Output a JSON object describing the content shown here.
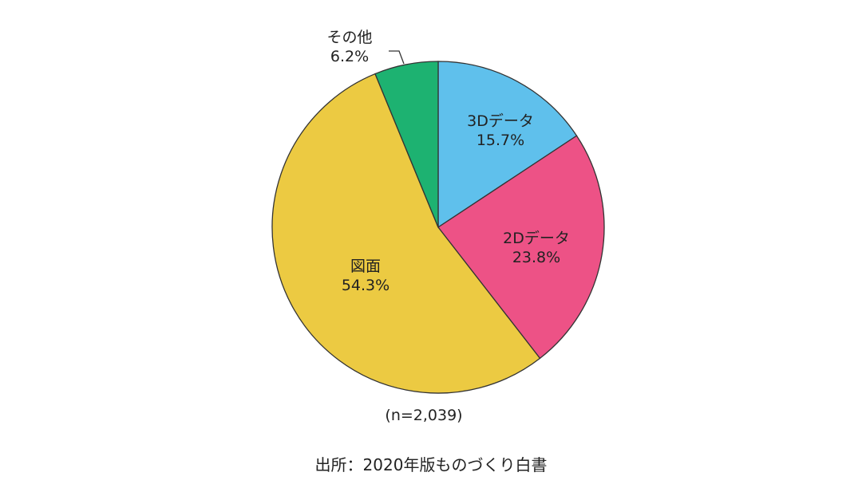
{
  "chart_data": {
    "type": "pie",
    "slices": [
      {
        "label": "3Dデータ",
        "value": 15.7,
        "value_text": "15.7%",
        "color": "#5fc0ec"
      },
      {
        "label": "2Dデータ",
        "value": 23.8,
        "value_text": "23.8%",
        "color": "#ed5286"
      },
      {
        "label": "図面",
        "value": 54.3,
        "value_text": "54.3%",
        "color": "#ecca42"
      },
      {
        "label": "その他",
        "value": 6.2,
        "value_text": "6.2%",
        "color": "#1db271"
      }
    ],
    "start_angle": "12 o'clock",
    "direction": "clockwise",
    "sample_size": "(n=2,039)",
    "source": "出所：2020年版ものづくり白書"
  }
}
